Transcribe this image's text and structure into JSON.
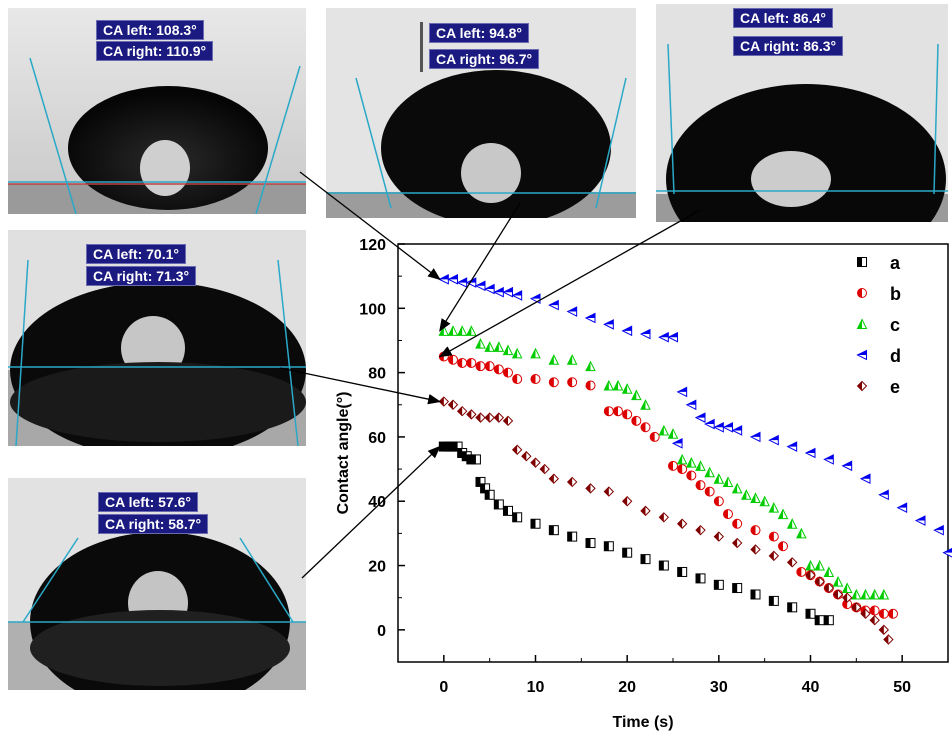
{
  "panels": [
    {
      "key": "p1",
      "ca_left": "CA left:  108.3°",
      "ca_right": "CA right:  110.9°",
      "series": "d"
    },
    {
      "key": "p2",
      "ca_left": "CA left:  94.8°",
      "ca_right": "CA right:  96.7°",
      "series": "c"
    },
    {
      "key": "p3",
      "ca_left": "CA left:  86.4°",
      "ca_right": "CA right:  86.3°",
      "series": "b"
    },
    {
      "key": "p4",
      "ca_left": "CA left:  70.1°",
      "ca_right": "CA right:  71.3°",
      "series": "e"
    },
    {
      "key": "p5",
      "ca_left": "CA left:  57.6°",
      "ca_right": "CA right:  58.7°",
      "series": "a"
    }
  ],
  "chart_data": {
    "type": "scatter",
    "xlabel": "Time (s)",
    "ylabel": "Contact angle(°)",
    "xlim": [
      -5,
      55
    ],
    "ylim": [
      -10,
      120
    ],
    "xticks": [
      0,
      10,
      20,
      30,
      40,
      50
    ],
    "yticks": [
      0,
      20,
      40,
      60,
      80,
      100,
      120
    ],
    "grid": false,
    "legend_position": "top-right",
    "series": [
      {
        "name": "a",
        "color": "#000000",
        "marker": "half-square",
        "points": [
          [
            0,
            57
          ],
          [
            0.5,
            57
          ],
          [
            1,
            57
          ],
          [
            1.5,
            57
          ],
          [
            2,
            55
          ],
          [
            2.5,
            54
          ],
          [
            3,
            53
          ],
          [
            3.5,
            53
          ],
          [
            4,
            46
          ],
          [
            4.5,
            44
          ],
          [
            5,
            42
          ],
          [
            6,
            39
          ],
          [
            7,
            37
          ],
          [
            8,
            35
          ],
          [
            10,
            33
          ],
          [
            12,
            31
          ],
          [
            14,
            29
          ],
          [
            16,
            27
          ],
          [
            18,
            26
          ],
          [
            20,
            24
          ],
          [
            22,
            22
          ],
          [
            24,
            20
          ],
          [
            26,
            18
          ],
          [
            28,
            16
          ],
          [
            30,
            14
          ],
          [
            32,
            13
          ],
          [
            34,
            11
          ],
          [
            36,
            9
          ],
          [
            38,
            7
          ],
          [
            40,
            5
          ],
          [
            41,
            3
          ],
          [
            42,
            3
          ]
        ]
      },
      {
        "name": "b",
        "color": "#dd0000",
        "marker": "half-circle",
        "points": [
          [
            0,
            85
          ],
          [
            1,
            84
          ],
          [
            2,
            83
          ],
          [
            3,
            83
          ],
          [
            4,
            82
          ],
          [
            5,
            82
          ],
          [
            6,
            81
          ],
          [
            7,
            80
          ],
          [
            8,
            78
          ],
          [
            10,
            78
          ],
          [
            12,
            77
          ],
          [
            14,
            77
          ],
          [
            16,
            76
          ],
          [
            18,
            68
          ],
          [
            19,
            68
          ],
          [
            20,
            67
          ],
          [
            21,
            65
          ],
          [
            22,
            63
          ],
          [
            23,
            60
          ],
          [
            25,
            51
          ],
          [
            26,
            50
          ],
          [
            27,
            48
          ],
          [
            28,
            45
          ],
          [
            29,
            43
          ],
          [
            30,
            40
          ],
          [
            31,
            36
          ],
          [
            32,
            33
          ],
          [
            34,
            31
          ],
          [
            36,
            29
          ],
          [
            37,
            26
          ],
          [
            39,
            18
          ],
          [
            40,
            17
          ],
          [
            41,
            15
          ],
          [
            42,
            13
          ],
          [
            43,
            11
          ],
          [
            44,
            8
          ],
          [
            45,
            7
          ],
          [
            46,
            6
          ],
          [
            47,
            6
          ],
          [
            48,
            5
          ],
          [
            49,
            5
          ]
        ]
      },
      {
        "name": "c",
        "color": "#00cc00",
        "marker": "half-triangle-up",
        "points": [
          [
            0,
            93
          ],
          [
            1,
            93
          ],
          [
            2,
            93
          ],
          [
            3,
            93
          ],
          [
            4,
            89
          ],
          [
            5,
            88
          ],
          [
            6,
            88
          ],
          [
            7,
            87
          ],
          [
            8,
            86
          ],
          [
            10,
            86
          ],
          [
            12,
            84
          ],
          [
            14,
            84
          ],
          [
            16,
            82
          ],
          [
            18,
            76
          ],
          [
            19,
            76
          ],
          [
            20,
            75
          ],
          [
            21,
            73
          ],
          [
            22,
            70
          ],
          [
            24,
            62
          ],
          [
            25,
            61
          ],
          [
            26,
            53
          ],
          [
            27,
            52
          ],
          [
            28,
            51
          ],
          [
            29,
            49
          ],
          [
            30,
            47
          ],
          [
            31,
            46
          ],
          [
            32,
            44
          ],
          [
            33,
            42
          ],
          [
            34,
            41
          ],
          [
            35,
            40
          ],
          [
            36,
            38
          ],
          [
            37,
            36
          ],
          [
            38,
            33
          ],
          [
            39,
            30
          ],
          [
            40,
            20
          ],
          [
            41,
            20
          ],
          [
            42,
            18
          ],
          [
            43,
            15
          ],
          [
            44,
            13
          ],
          [
            45,
            11
          ],
          [
            46,
            11
          ],
          [
            47,
            11
          ],
          [
            48,
            11
          ]
        ]
      },
      {
        "name": "d",
        "color": "#0000ee",
        "marker": "half-triangle-left",
        "points": [
          [
            0,
            109
          ],
          [
            1,
            109
          ],
          [
            2,
            108
          ],
          [
            3,
            108
          ],
          [
            4,
            107
          ],
          [
            5,
            106
          ],
          [
            6,
            105
          ],
          [
            7,
            105
          ],
          [
            8,
            104
          ],
          [
            10,
            103
          ],
          [
            12,
            101
          ],
          [
            14,
            99
          ],
          [
            16,
            97
          ],
          [
            18,
            95
          ],
          [
            20,
            93
          ],
          [
            22,
            92
          ],
          [
            24,
            91
          ],
          [
            25,
            91
          ],
          [
            25.5,
            58
          ],
          [
            26,
            74
          ],
          [
            27,
            70
          ],
          [
            28,
            66
          ],
          [
            29,
            64
          ],
          [
            30,
            63
          ],
          [
            31,
            63
          ],
          [
            32,
            62
          ],
          [
            34,
            60
          ],
          [
            36,
            59
          ],
          [
            38,
            57
          ],
          [
            40,
            55
          ],
          [
            42,
            53
          ],
          [
            44,
            51
          ],
          [
            46,
            47
          ],
          [
            48,
            42
          ],
          [
            50,
            38
          ],
          [
            52,
            34
          ],
          [
            54,
            31
          ],
          [
            55,
            24
          ]
        ]
      },
      {
        "name": "e",
        "color": "#800000",
        "marker": "half-diamond",
        "points": [
          [
            0,
            71
          ],
          [
            1,
            70
          ],
          [
            2,
            68
          ],
          [
            3,
            67
          ],
          [
            4,
            66
          ],
          [
            5,
            66
          ],
          [
            6,
            66
          ],
          [
            7,
            65
          ],
          [
            8,
            56
          ],
          [
            9,
            54
          ],
          [
            10,
            52
          ],
          [
            11,
            50
          ],
          [
            12,
            47
          ],
          [
            14,
            46
          ],
          [
            16,
            44
          ],
          [
            18,
            43
          ],
          [
            20,
            40
          ],
          [
            22,
            37
          ],
          [
            24,
            35
          ],
          [
            26,
            33
          ],
          [
            28,
            31
          ],
          [
            30,
            29
          ],
          [
            32,
            27
          ],
          [
            34,
            25
          ],
          [
            36,
            23
          ],
          [
            38,
            21
          ],
          [
            40,
            17
          ],
          [
            41,
            15
          ],
          [
            42,
            13
          ],
          [
            43,
            11
          ],
          [
            44,
            10
          ],
          [
            45,
            7
          ],
          [
            46,
            5
          ],
          [
            47,
            3
          ],
          [
            48,
            0
          ],
          [
            48.5,
            -3
          ]
        ]
      }
    ]
  }
}
